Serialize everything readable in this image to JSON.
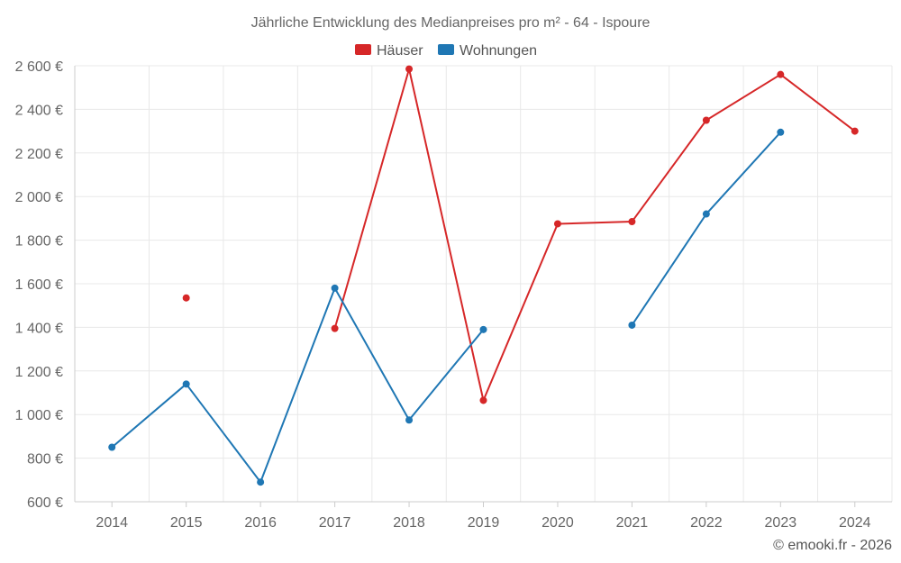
{
  "chart_data": {
    "type": "line",
    "title": "Jährliche Entwicklung des Medianpreises pro m² - 64 - Ispoure",
    "categories": [
      "2014",
      "2015",
      "2016",
      "2017",
      "2018",
      "2019",
      "2020",
      "2021",
      "2022",
      "2023",
      "2024"
    ],
    "ylim": [
      600,
      2600
    ],
    "yticks": [
      600,
      800,
      1000,
      1200,
      1400,
      1600,
      1800,
      2000,
      2200,
      2400,
      2600
    ],
    "ytick_labels": [
      "600 €",
      "800 €",
      "1 000 €",
      "1 200 €",
      "1 400 €",
      "1 600 €",
      "1 800 €",
      "2 000 €",
      "2 200 €",
      "2 400 €",
      "2 600 €"
    ],
    "grid": true,
    "legend_position": "top-center",
    "series": [
      {
        "name": "Häuser",
        "color": "#d62728",
        "values": [
          null,
          1535,
          null,
          1395,
          2585,
          1065,
          1875,
          1885,
          2350,
          2560,
          2300
        ]
      },
      {
        "name": "Wohnungen",
        "color": "#1f77b4",
        "values": [
          850,
          1140,
          690,
          1580,
          975,
          1390,
          null,
          1410,
          1920,
          2295,
          null
        ]
      }
    ]
  },
  "credit": "© emooki.fr - 2026"
}
